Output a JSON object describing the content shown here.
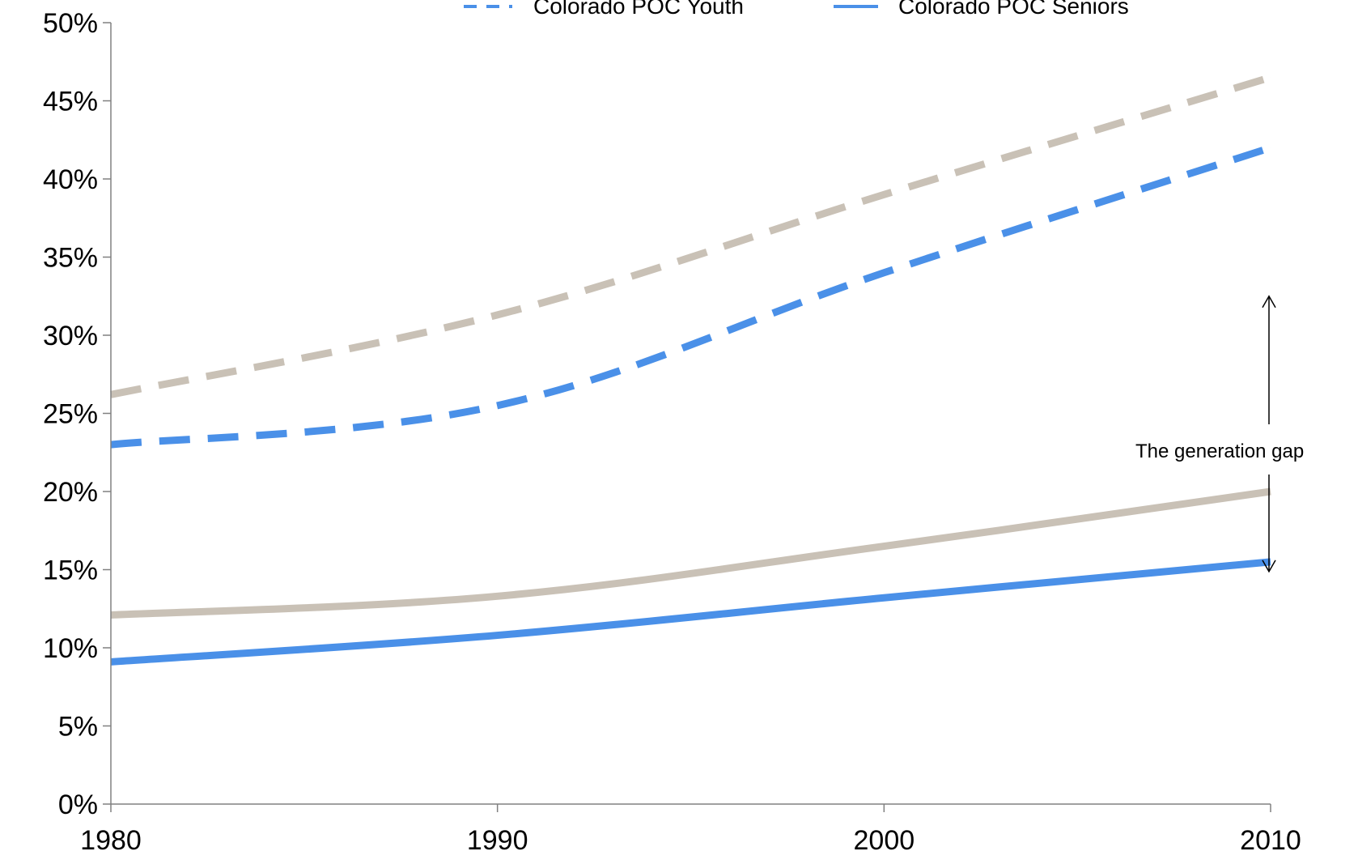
{
  "chart_data": {
    "type": "line",
    "title": "",
    "xlabel": "",
    "ylabel": "",
    "x": [
      1980,
      1990,
      2000,
      2010
    ],
    "xlim": [
      1980,
      2010
    ],
    "ylim": [
      0,
      50
    ],
    "y_ticks": [
      "0%",
      "5%",
      "10%",
      "15%",
      "20%",
      "25%",
      "30%",
      "35%",
      "40%",
      "45%",
      "50%"
    ],
    "x_ticks": [
      "1980",
      "1990",
      "2000",
      "2010"
    ],
    "grid": false,
    "legend_position": "top",
    "legend": [
      {
        "label": "Colorado POC Youth",
        "series_index": 0
      },
      {
        "label": "Colorado POC Seniors",
        "series_index": 1
      }
    ],
    "series": [
      {
        "name": "Colorado POC Youth",
        "values": [
          23.0,
          25.5,
          34.0,
          42.0
        ],
        "color": "#4a90e8",
        "style": "dashed"
      },
      {
        "name": "Colorado POC Seniors",
        "values": [
          9.1,
          10.8,
          13.2,
          15.5
        ],
        "color": "#4a90e8",
        "style": "solid"
      },
      {
        "name": "",
        "values": [
          26.2,
          31.3,
          39.0,
          46.5
        ],
        "color": "#c9c1b6",
        "style": "dashed"
      },
      {
        "name": "",
        "values": [
          12.1,
          13.3,
          16.5,
          20.0
        ],
        "color": "#c9c1b6",
        "style": "solid"
      }
    ],
    "annotations": [
      {
        "text": "The generation gap",
        "x": 2010,
        "y_from": 15.5,
        "y_to": 32.5
      }
    ]
  }
}
